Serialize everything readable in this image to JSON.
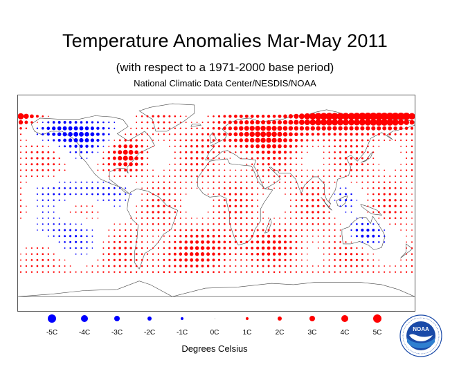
{
  "header": {
    "title": "Temperature Anomalies Mar-May 2011",
    "subtitle": "(with respect to a 1971-2000 base period)",
    "credit": "National Climatic Data Center/NESDIS/NOAA"
  },
  "legend": {
    "items": [
      {
        "label": "-5C",
        "value": -5,
        "color": "#0000ff"
      },
      {
        "label": "-4C",
        "value": -4,
        "color": "#0000ff"
      },
      {
        "label": "-3C",
        "value": -3,
        "color": "#0000ff"
      },
      {
        "label": "-2C",
        "value": -2,
        "color": "#0000ff"
      },
      {
        "label": "-1C",
        "value": -1,
        "color": "#0000ff"
      },
      {
        "label": "0C",
        "value": 0,
        "color": "#888888"
      },
      {
        "label": "1C",
        "value": 1,
        "color": "#ff0000"
      },
      {
        "label": "2C",
        "value": 2,
        "color": "#ff0000"
      },
      {
        "label": "3C",
        "value": 3,
        "color": "#ff0000"
      },
      {
        "label": "4C",
        "value": 4,
        "color": "#ff0000"
      },
      {
        "label": "5C",
        "value": 5,
        "color": "#ff0000"
      }
    ],
    "units": "Degrees Celsius"
  },
  "colors": {
    "warm": "#ff0000",
    "cold": "#0000ff",
    "coastline": "#444444",
    "logo_blue": "#1a4aa8",
    "logo_light": "#2f7fd0"
  },
  "icons": {
    "logo": "noaa-logo"
  },
  "logo": {
    "text": "NOAA"
  },
  "map": {
    "grid_step_degrees": 5,
    "lon_range": [
      -180,
      180
    ],
    "lat_range": [
      -90,
      90
    ],
    "projection": "equirectangular",
    "anomaly_regions": [
      {
        "region": "arctic-russia-siberia",
        "anomaly": 4.5
      },
      {
        "region": "western-canada-alaska",
        "anomaly": -2.5
      },
      {
        "region": "eastern-europe-russia",
        "anomaly": 2.5
      },
      {
        "region": "eastern-usa",
        "anomaly": 2.5
      },
      {
        "region": "southern-australia",
        "anomaly": -2
      },
      {
        "region": "southeast-asia",
        "anomaly": -1
      },
      {
        "region": "eastern-pacific-tropics",
        "anomaly": -1
      },
      {
        "region": "southern-oceans",
        "anomaly": 1.5
      },
      {
        "region": "south-pacific",
        "anomaly": -2
      }
    ]
  }
}
